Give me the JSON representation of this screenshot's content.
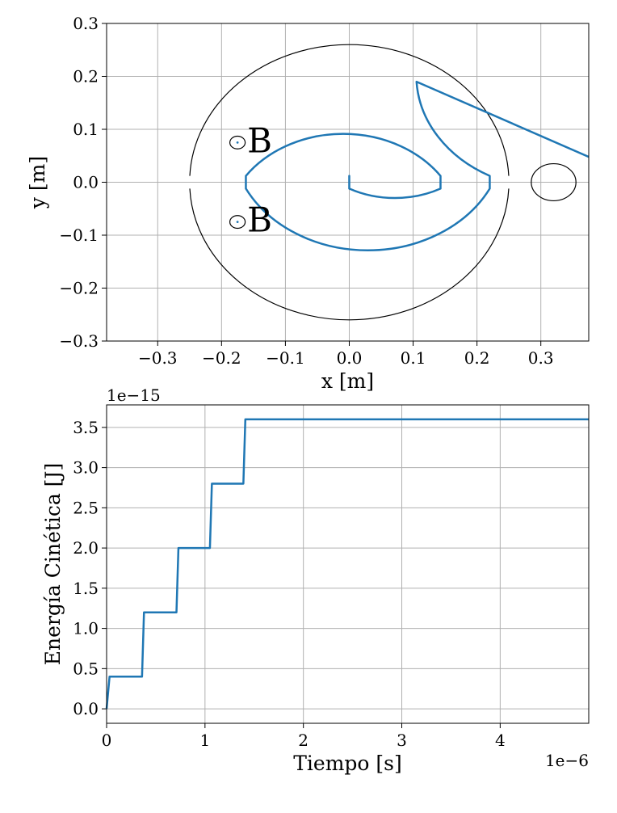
{
  "chart_data": [
    {
      "type": "line",
      "title": "",
      "xlabel": "x [m]",
      "ylabel": "y [m]",
      "xlim": [
        -0.38,
        0.375
      ],
      "ylim": [
        -0.3,
        0.3
      ],
      "xticks": [
        -0.3,
        -0.2,
        -0.1,
        0.0,
        0.1,
        0.2,
        0.3
      ],
      "yticks": [
        -0.3,
        -0.2,
        -0.1,
        0.0,
        0.1,
        0.2,
        0.3
      ],
      "xtick_labels": [
        "−0.3",
        "−0.2",
        "−0.1",
        "0.0",
        "0.1",
        "0.2",
        "0.3"
      ],
      "ytick_labels": [
        "−0.3",
        "−0.2",
        "−0.1",
        "0.0",
        "0.1",
        "0.2",
        "0.3"
      ],
      "grid": true,
      "line_color": "#1f77b4",
      "outline_color": "#000000",
      "dees": {
        "center": [
          0.0,
          0.0
        ],
        "rx": 0.25,
        "ry": 0.26,
        "gap_half_width": 0.012
      },
      "spiral": {
        "start": [
          0.0,
          0.0
        ],
        "gap": [
          -0.11,
          0.145
        ],
        "radii": [
          0.0715,
          0.1524,
          0.186,
          0.2146
        ],
        "centers": [
          [
            0.0715,
            0.0
          ],
          [
            -0.0095,
            0.0
          ],
          [
            0.0241,
            0.0
          ],
          [
            0.0054,
            0.0
          ]
        ],
        "exit_to": [
          0.375,
          0.048
        ]
      },
      "target": {
        "center": [
          0.32,
          0.0
        ],
        "radius": 0.035
      },
      "magnets": [
        {
          "label": "B",
          "center": [
            -0.175,
            0.075
          ],
          "radius": 0.012
        },
        {
          "label": "B",
          "center": [
            -0.175,
            -0.075
          ],
          "radius": 0.012
        }
      ]
    },
    {
      "type": "line",
      "title": "",
      "xlabel": "Tiempo [s]",
      "ylabel": "Energía Cinética [J]",
      "x_offset_label": "1e−6",
      "y_offset_label": "1e−15",
      "xlim": [
        0.0,
        4.9
      ],
      "ylim": [
        -0.18,
        3.78
      ],
      "xticks": [
        0,
        1,
        2,
        3,
        4
      ],
      "yticks": [
        0.0,
        0.5,
        1.0,
        1.5,
        2.0,
        2.5,
        3.0,
        3.5
      ],
      "xtick_labels": [
        "0",
        "1",
        "2",
        "3",
        "4"
      ],
      "ytick_labels": [
        "0.0",
        "0.5",
        "1.0",
        "1.5",
        "2.0",
        "2.5",
        "3.0",
        "3.5"
      ],
      "grid": true,
      "line_color": "#1f77b4",
      "x": [
        0.0,
        0.03,
        0.36,
        0.38,
        0.71,
        0.73,
        1.05,
        1.07,
        1.39,
        1.41,
        4.9
      ],
      "y": [
        0.0,
        0.4,
        0.4,
        1.2,
        1.2,
        2.0,
        2.0,
        2.8,
        2.8,
        3.6,
        3.6
      ]
    }
  ]
}
